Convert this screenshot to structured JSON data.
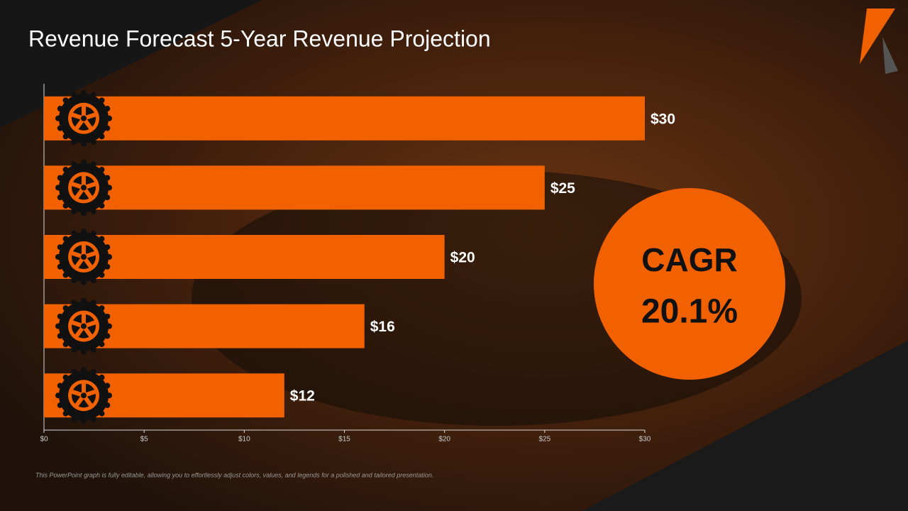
{
  "chart_data": {
    "type": "bar",
    "orientation": "horizontal",
    "title": "Revenue Forecast 5-Year Revenue Projection",
    "categories": [
      null,
      null,
      null,
      null,
      null
    ],
    "values": [
      30,
      25,
      20,
      16,
      12
    ],
    "value_labels": [
      "$30",
      "$25",
      "$20",
      "$16",
      "$12"
    ],
    "color": "#f26100",
    "xlim": [
      0,
      30
    ],
    "xticks": [
      {
        "value": 0,
        "label": "$0"
      },
      {
        "value": 5,
        "label": "$5"
      },
      {
        "value": 10,
        "label": "$10"
      },
      {
        "value": 15,
        "label": "$15"
      },
      {
        "value": 20,
        "label": "$20"
      },
      {
        "value": 25,
        "label": "$25"
      },
      {
        "value": 30,
        "label": "$30"
      }
    ],
    "callout": {
      "label": "CAGR",
      "value": "20.1%"
    },
    "footnote": "This PowerPoint graph is fully editable, allowing you to effortlessly adjust colors, values, and legends for a polished and tailored presentation."
  }
}
